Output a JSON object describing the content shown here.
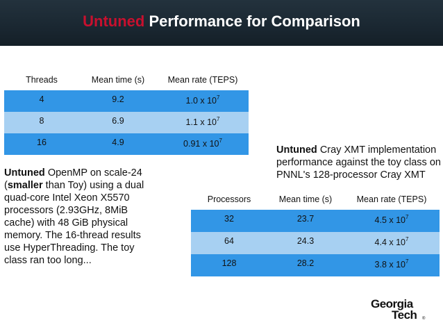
{
  "header": {
    "title_accent": "Untuned",
    "title_rest": " Performance for Comparison"
  },
  "colors": {
    "header_bg": "#1a2731",
    "accent": "#c8102e",
    "row_dark": "#3296e6",
    "row_light": "#a7d0f2"
  },
  "threads_table": {
    "headers": [
      "Threads",
      "Mean time (s)",
      "Mean rate (TEPS)"
    ],
    "rows": [
      {
        "a": "4",
        "b": "9.2",
        "mant": "1.0 x 10",
        "exp": "7"
      },
      {
        "a": "8",
        "b": "6.9",
        "mant": "1.1 x 10",
        "exp": "7"
      },
      {
        "a": "16",
        "b": "4.9",
        "mant": "0.91 x 10",
        "exp": "7"
      }
    ]
  },
  "processor_table": {
    "headers": [
      "Processors",
      "Mean time (s)",
      "Mean rate (TEPS)"
    ],
    "rows": [
      {
        "a": "32",
        "b": "23.7",
        "mant": "4.5 x 10",
        "exp": "7"
      },
      {
        "a": "64",
        "b": "24.3",
        "mant": "4.4 x 10",
        "exp": "7"
      },
      {
        "a": "128",
        "b": "28.2",
        "mant": "3.8 x 10",
        "exp": "7"
      }
    ]
  },
  "openmp_note": {
    "bold1": "Untuned",
    "text1": " OpenMP on scale-24 (",
    "bold2": "smaller",
    "text2": " than Toy) using a dual quad-core Intel Xeon X5570 processors (2.93GHz, 8MiB cache) with 48 GiB physical memory. The 16-thread results use HyperThreading.  The toy class ran too long..."
  },
  "xmt_note": {
    "bold": "Untuned",
    "text": " Cray XMT implementation performance against the toy class on PNNL's 128-processor Cray XMT"
  },
  "logo": {
    "line1": "Georgia",
    "line2": "Tech",
    "mark": "®"
  }
}
